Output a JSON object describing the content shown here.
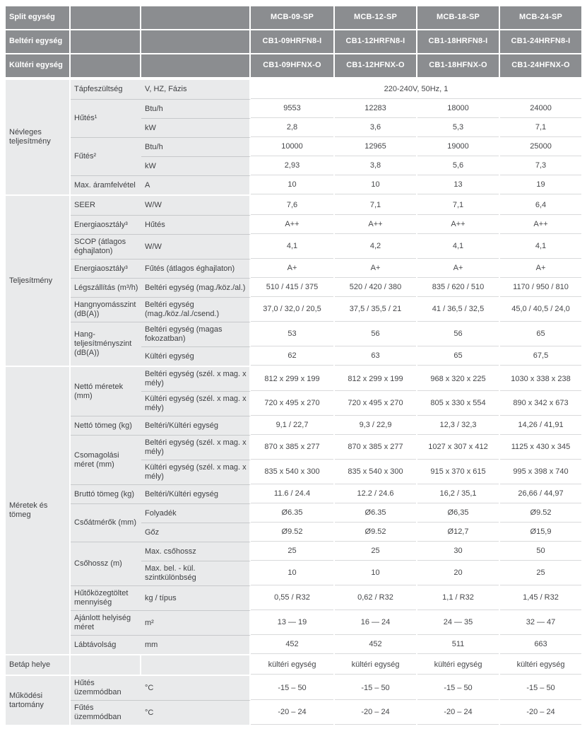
{
  "header": {
    "rows": [
      {
        "label": "Split egység",
        "values": [
          "MCB-09-SP",
          "MCB-12-SP",
          "MCB-18-SP",
          "MCB-24-SP"
        ]
      },
      {
        "label": "Beltéri egység",
        "values": [
          "CB1-09HRFN8-I",
          "CB1-12HRFN8-I",
          "CB1-18HRFN8-I",
          "CB1-24HRFN8-I"
        ]
      },
      {
        "label": "Kültéri egység",
        "values": [
          "CB1-09HFNX-O",
          "CB1-12HFNX-O",
          "CB1-18HFNX-O",
          "CB1-24HFNX-O"
        ]
      }
    ]
  },
  "sections": [
    {
      "name": "Névleges teljesítmény",
      "groups": [
        {
          "param": "Tápfeszültség",
          "rows": [
            {
              "detail": "V, HZ, Fázis",
              "span": true,
              "values": [
                "220-240V, 50Hz, 1"
              ]
            }
          ]
        },
        {
          "param": "Hűtés¹",
          "rows": [
            {
              "detail": "Btu/h",
              "values": [
                "9553",
                "12283",
                "18000",
                "24000"
              ]
            },
            {
              "detail": "kW",
              "values": [
                "2,8",
                "3,6",
                "5,3",
                "7,1"
              ]
            }
          ]
        },
        {
          "param": "Fűtés²",
          "rows": [
            {
              "detail": "Btu/h",
              "values": [
                "10000",
                "12965",
                "19000",
                "25000"
              ]
            },
            {
              "detail": "kW",
              "values": [
                "2,93",
                "3,8",
                "5,6",
                "7,3"
              ]
            }
          ]
        },
        {
          "param": "Max. áramfelvétel",
          "rows": [
            {
              "detail": "A",
              "values": [
                "10",
                "10",
                "13",
                "19"
              ]
            }
          ]
        }
      ]
    },
    {
      "name": "Teljesítmény",
      "groups": [
        {
          "param": "SEER",
          "rows": [
            {
              "detail": "W/W",
              "values": [
                "7,6",
                "7,1",
                "7,1",
                "6,4"
              ]
            }
          ]
        },
        {
          "param": "Energiaosztály³",
          "rows": [
            {
              "detail": "Hűtés",
              "values": [
                "A++",
                "A++",
                "A++",
                "A++"
              ]
            }
          ]
        },
        {
          "param": "SCOP (átlagos éghajlaton)",
          "rows": [
            {
              "detail": "W/W",
              "values": [
                "4,1",
                "4,2",
                "4,1",
                "4,1"
              ]
            }
          ]
        },
        {
          "param": "Energiaosztály³",
          "rows": [
            {
              "detail": "Fűtés (átlagos éghajlaton)",
              "values": [
                "A+",
                "A+",
                "A+",
                "A+"
              ]
            }
          ]
        },
        {
          "param": "Légszállítás (m³/h)",
          "rows": [
            {
              "detail": "Beltéri egység (mag./köz./al.)",
              "values": [
                "510 / 415 / 375",
                "520 / 420 / 380",
                "835 / 620 / 510",
                "1170 / 950 / 810"
              ]
            }
          ]
        },
        {
          "param": "Hangnyomásszint (dB(A))",
          "rows": [
            {
              "detail": "Beltéri egység (mag./köz./al./csend.)",
              "values": [
                "37,0 / 32,0 / 20,5",
                "37,5 / 35,5 / 21",
                "41 / 36,5 / 32,5",
                "45,0 / 40,5 / 24,0"
              ]
            }
          ]
        },
        {
          "param": "Hang-teljesítményszint (dB(A))",
          "rows": [
            {
              "detail": "Beltéri egység (magas fokozatban)",
              "values": [
                "53",
                "56",
                "56",
                "65"
              ]
            },
            {
              "detail": "Kültéri egység",
              "values": [
                "62",
                "63",
                "65",
                "67,5"
              ]
            }
          ]
        }
      ]
    },
    {
      "name": "Méretek és tömeg",
      "groups": [
        {
          "param": "Nettó méretek (mm)",
          "rows": [
            {
              "detail": "Beltéri egység (szél. x mag. x mély)",
              "values": [
                "812 x 299 x 199",
                "812 x 299 x 199",
                "968 x 320 x 225",
                "1030 x 338 x 238"
              ]
            },
            {
              "detail": "Kültéri egység (szél. x mag. x mély)",
              "values": [
                "720 x 495 x 270",
                "720 x 495 x 270",
                "805 x 330 x 554",
                "890 x 342 x 673"
              ]
            }
          ]
        },
        {
          "param": "Nettó tömeg (kg)",
          "rows": [
            {
              "detail": "Beltéri/Kültéri egység",
              "values": [
                "9,1 / 22,7",
                "9,3 / 22,9",
                "12,3 / 32,3",
                "14,26 / 41,91"
              ]
            }
          ]
        },
        {
          "param": "Csomagolási méret (mm)",
          "rows": [
            {
              "detail": "Beltéri egység (szél. x mag. x mély)",
              "values": [
                "870 x 385 x 277",
                "870 x 385 x 277",
                "1027 x 307 x 412",
                "1125 x 430 x 345"
              ]
            },
            {
              "detail": "Kültéri egység (szél. x mag. x mély)",
              "values": [
                "835 x 540 x 300",
                "835 x 540 x 300",
                "915 x 370 x 615",
                "995 x 398 x 740"
              ]
            }
          ]
        },
        {
          "param": "Bruttó tömeg (kg)",
          "rows": [
            {
              "detail": "Beltéri/Kültéri egység",
              "values": [
                "11.6 / 24.4",
                "12.2 / 24.6",
                "16,2 / 35,1",
                "26,66 / 44,97"
              ]
            }
          ]
        },
        {
          "param": "Csőátmérők (mm)",
          "rows": [
            {
              "detail": "Folyadék",
              "values": [
                "Ø6.35",
                "Ø6.35",
                "Ø6,35",
                "Ø9.52"
              ]
            },
            {
              "detail": "Gőz",
              "values": [
                "Ø9.52",
                "Ø9.52",
                "Ø12,7",
                "Ø15,9"
              ]
            }
          ]
        },
        {
          "param": "Csőhossz (m)",
          "rows": [
            {
              "detail": "Max. csőhossz",
              "values": [
                "25",
                "25",
                "30",
                "50"
              ]
            },
            {
              "detail": "Max. bel. - kül. szintkülönbség",
              "values": [
                "10",
                "10",
                "20",
                "25"
              ]
            }
          ]
        },
        {
          "param": "Hűtőközegtöltet mennyiség",
          "rows": [
            {
              "detail": "kg / típus",
              "values": [
                "0,55 / R32",
                "0,62 / R32",
                "1,1 / R32",
                "1,45 / R32"
              ]
            }
          ]
        },
        {
          "param": "Ajánlott helyiség méret",
          "rows": [
            {
              "detail": "m²",
              "values": [
                "13 — 19",
                "16 — 24",
                "24 — 35",
                "32 — 47"
              ]
            }
          ]
        },
        {
          "param": "Lábtávolság",
          "rows": [
            {
              "detail": "mm",
              "values": [
                "452",
                "452",
                "511",
                "663"
              ]
            }
          ]
        }
      ]
    },
    {
      "name": "Betáp helye",
      "full_row": true,
      "values": [
        "kültéri egység",
        "kültéri egység",
        "kültéri egység",
        "kültéri egység"
      ]
    },
    {
      "name": "Működési tartomány",
      "groups": [
        {
          "param": "Hűtés üzemmódban",
          "rows": [
            {
              "detail": "°C",
              "values": [
                "-15 – 50",
                "-15 – 50",
                "-15 – 50",
                "-15 – 50"
              ]
            }
          ]
        },
        {
          "param": "Fűtés üzemmódban",
          "rows": [
            {
              "detail": "°C",
              "values": [
                "-20 – 24",
                "-20 – 24",
                "-20 – 24",
                "-20 – 24"
              ]
            }
          ]
        }
      ]
    }
  ]
}
